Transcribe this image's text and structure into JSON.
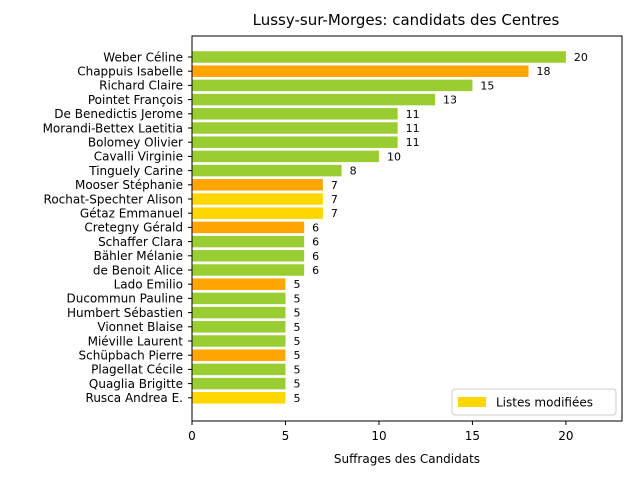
{
  "chart_data": {
    "type": "bar",
    "orientation": "horizontal",
    "title": "Lussy-sur-Morges: candidats des Centres",
    "xlabel": "Suffrages des Candidats",
    "ylabel": "",
    "xlim": [
      0,
      23
    ],
    "xticks": [
      0,
      5,
      10,
      15,
      20
    ],
    "grid": false,
    "colors": {
      "green": "#9acd32",
      "orange": "#ffa500",
      "yellow": "#ffd700"
    },
    "legend": {
      "placement": "lower-right",
      "entries": [
        {
          "label": "Listes modifiées",
          "color": "#ffd700"
        }
      ]
    },
    "bars": [
      {
        "name": "Weber Céline",
        "value": 20,
        "color": "#9acd32"
      },
      {
        "name": "Chappuis Isabelle",
        "value": 18,
        "color": "#ffa500"
      },
      {
        "name": "Richard Claire",
        "value": 15,
        "color": "#9acd32"
      },
      {
        "name": "Pointet François",
        "value": 13,
        "color": "#9acd32"
      },
      {
        "name": "De Benedictis Jerome",
        "value": 11,
        "color": "#9acd32"
      },
      {
        "name": "Morandi-Bettex Laetitia",
        "value": 11,
        "color": "#9acd32"
      },
      {
        "name": "Bolomey Olivier",
        "value": 11,
        "color": "#9acd32"
      },
      {
        "name": "Cavalli Virginie",
        "value": 10,
        "color": "#9acd32"
      },
      {
        "name": "Tinguely Carine",
        "value": 8,
        "color": "#9acd32"
      },
      {
        "name": "Mooser Stéphanie",
        "value": 7,
        "color": "#ffa500"
      },
      {
        "name": "Rochat-Spechter Alison",
        "value": 7,
        "color": "#ffd700"
      },
      {
        "name": "Gétaz Emmanuel",
        "value": 7,
        "color": "#ffd700"
      },
      {
        "name": "Cretegny Gérald",
        "value": 6,
        "color": "#ffa500"
      },
      {
        "name": "Schaffer Clara",
        "value": 6,
        "color": "#9acd32"
      },
      {
        "name": "Bähler Mélanie",
        "value": 6,
        "color": "#9acd32"
      },
      {
        "name": "de Benoit Alice",
        "value": 6,
        "color": "#9acd32"
      },
      {
        "name": "Lado Emilio",
        "value": 5,
        "color": "#ffa500"
      },
      {
        "name": "Ducommun Pauline",
        "value": 5,
        "color": "#9acd32"
      },
      {
        "name": "Humbert Sébastien",
        "value": 5,
        "color": "#9acd32"
      },
      {
        "name": "Vionnet Blaise",
        "value": 5,
        "color": "#9acd32"
      },
      {
        "name": "Miéville Laurent",
        "value": 5,
        "color": "#9acd32"
      },
      {
        "name": "Schüpbach Pierre",
        "value": 5,
        "color": "#ffa500"
      },
      {
        "name": "Plagellat Cécile",
        "value": 5,
        "color": "#9acd32"
      },
      {
        "name": "Quaglia Brigitte",
        "value": 5,
        "color": "#9acd32"
      },
      {
        "name": "Rusca Andrea E.",
        "value": 5,
        "color": "#ffd700"
      }
    ]
  }
}
